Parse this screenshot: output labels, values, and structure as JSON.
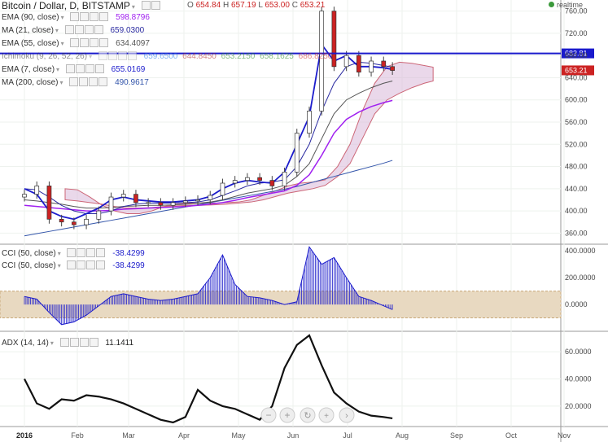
{
  "header": {
    "symbol": "Bitcoin / Dollar, D, BITSTAMP",
    "ohlc": {
      "O_label": "O",
      "O": "654.84",
      "H_label": "H",
      "H": "657.19",
      "L_label": "L",
      "L": "653.00",
      "C_label": "C",
      "C": "653.21"
    },
    "realtime_label": "realtime"
  },
  "legend": {
    "ema90": {
      "label": "EMA (90, close)",
      "value": "598.8796",
      "color": "#a020f0"
    },
    "ma21": {
      "label": "MA (21, close)",
      "value": "659.0300",
      "color": "#2a2aa0"
    },
    "ema55": {
      "label": "EMA (55, close)",
      "value": "634.4097",
      "color": "#555555"
    },
    "ichimoku": {
      "label": "Ichimoku (9, 26, 52, 26)",
      "values": [
        "659.6500",
        "644.8450",
        "653.2150",
        "658.1625",
        "686.8250"
      ]
    },
    "ema7": {
      "label": "EMA (7, close)",
      "value": "655.0169",
      "color": "#1c1ccc"
    },
    "ma200": {
      "label": "MA (200, close)",
      "value": "490.9617",
      "color": "#3355aa"
    },
    "cci1": {
      "label": "CCI (50, close)",
      "value": "-38.4299"
    },
    "cci2": {
      "label": "CCI (50, close)",
      "value": "-38.4299"
    },
    "adx": {
      "label": "ADX (14, 14)",
      "value": "11.1411"
    }
  },
  "price_axis": {
    "ticks": [
      "760.00",
      "720.00",
      "680.00",
      "640.00",
      "600.00",
      "560.00",
      "520.00",
      "480.00",
      "440.00",
      "400.00",
      "360.00"
    ]
  },
  "price_tags": [
    {
      "value": "683.81",
      "color": "#1a1acc"
    },
    {
      "value": "653.21",
      "color": "#cc2222"
    }
  ],
  "cci_axis": {
    "ticks": [
      "400.0000",
      "200.0000",
      "0.0000"
    ]
  },
  "adx_axis": {
    "ticks": [
      "60.0000",
      "40.0000",
      "20.0000"
    ]
  },
  "time_axis": {
    "labels": [
      "2016",
      "Feb",
      "Mar",
      "Apr",
      "May",
      "Jun",
      "Jul",
      "Aug",
      "Sep",
      "Oct",
      "Nov"
    ]
  },
  "chart_data": [
    {
      "type": "candlestick",
      "title": "Bitcoin / Dollar, D, BITSTAMP",
      "x": [
        "2016",
        "Feb",
        "Mar",
        "Apr",
        "May",
        "Jun",
        "Jul",
        "Aug",
        "Sep",
        "Oct",
        "Nov"
      ],
      "ylim": [
        340,
        780
      ],
      "close_series": [
        {
          "x": "2016-01-01",
          "y": 430
        },
        {
          "x": "2016-01-08",
          "y": 445
        },
        {
          "x": "2016-01-15",
          "y": 385
        },
        {
          "x": "2016-01-22",
          "y": 380
        },
        {
          "x": "2016-01-29",
          "y": 375
        },
        {
          "x": "2016-02-05",
          "y": 385
        },
        {
          "x": "2016-02-12",
          "y": 400
        },
        {
          "x": "2016-02-19",
          "y": 425
        },
        {
          "x": "2016-02-26",
          "y": 430
        },
        {
          "x": "2016-03-04",
          "y": 415
        },
        {
          "x": "2016-03-11",
          "y": 415
        },
        {
          "x": "2016-03-18",
          "y": 410
        },
        {
          "x": "2016-03-25",
          "y": 415
        },
        {
          "x": "2016-04-01",
          "y": 418
        },
        {
          "x": "2016-04-08",
          "y": 420
        },
        {
          "x": "2016-04-15",
          "y": 428
        },
        {
          "x": "2016-04-22",
          "y": 450
        },
        {
          "x": "2016-04-29",
          "y": 455
        },
        {
          "x": "2016-05-06",
          "y": 460
        },
        {
          "x": "2016-05-13",
          "y": 455
        },
        {
          "x": "2016-05-20",
          "y": 445
        },
        {
          "x": "2016-05-27",
          "y": 470
        },
        {
          "x": "2016-06-03",
          "y": 540
        },
        {
          "x": "2016-06-10",
          "y": 580
        },
        {
          "x": "2016-06-17",
          "y": 760
        },
        {
          "x": "2016-06-24",
          "y": 660
        },
        {
          "x": "2016-07-01",
          "y": 680
        },
        {
          "x": "2016-07-08",
          "y": 650
        },
        {
          "x": "2016-07-15",
          "y": 670
        },
        {
          "x": "2016-07-22",
          "y": 660
        },
        {
          "x": "2016-07-27",
          "y": 653
        }
      ],
      "indicators": {
        "ema7": [
          440,
          430,
          400,
          390,
          385,
          395,
          405,
          420,
          425,
          420,
          418,
          416,
          416,
          418,
          420,
          426,
          440,
          450,
          455,
          452,
          450,
          470,
          520,
          570,
          700,
          670,
          680,
          660,
          660,
          658,
          655
        ],
        "ma21": [
          440,
          438,
          425,
          410,
          400,
          395,
          395,
          400,
          408,
          412,
          414,
          414,
          414,
          415,
          416,
          420,
          428,
          436,
          445,
          450,
          452,
          456,
          480,
          520,
          580,
          630,
          660,
          668,
          666,
          662,
          659
        ],
        "ema55": [
          420,
          418,
          415,
          412,
          408,
          405,
          405,
          406,
          408,
          409,
          410,
          410,
          411,
          412,
          414,
          416,
          420,
          426,
          432,
          436,
          440,
          446,
          462,
          485,
          530,
          575,
          600,
          612,
          622,
          630,
          634
        ],
        "ema90": [
          410,
          408,
          406,
          404,
          402,
          400,
          400,
          401,
          403,
          404,
          405,
          406,
          407,
          408,
          410,
          412,
          415,
          419,
          424,
          428,
          432,
          436,
          446,
          465,
          500,
          540,
          565,
          578,
          588,
          595,
          599
        ],
        "ma200": [
          355,
          359,
          363,
          367,
          371,
          375,
          379,
          383,
          387,
          391,
          395,
          399,
          403,
          407,
          411,
          415,
          419,
          423,
          427,
          431,
          435,
          439,
          444,
          450,
          456,
          462,
          468,
          474,
          480,
          486,
          491
        ]
      },
      "horizontal_lines": [
        683.81,
        653.21
      ]
    },
    {
      "type": "line",
      "title": "CCI (50, close)",
      "ylim": [
        -200,
        450
      ],
      "band": [
        -100,
        100
      ],
      "values": [
        60,
        40,
        -60,
        -150,
        -130,
        -80,
        -10,
        60,
        80,
        60,
        40,
        30,
        40,
        60,
        80,
        200,
        370,
        150,
        60,
        50,
        30,
        0,
        20,
        430,
        300,
        350,
        200,
        60,
        30,
        -10,
        -38
      ]
    },
    {
      "type": "line",
      "title": "ADX (14, 14)",
      "ylim": [
        5,
        75
      ],
      "values": [
        40,
        22,
        18,
        25,
        24,
        28,
        27,
        25,
        22,
        18,
        14,
        10,
        8,
        12,
        32,
        24,
        20,
        18,
        14,
        10,
        20,
        48,
        65,
        72,
        50,
        30,
        22,
        16,
        13,
        12,
        11
      ]
    }
  ]
}
